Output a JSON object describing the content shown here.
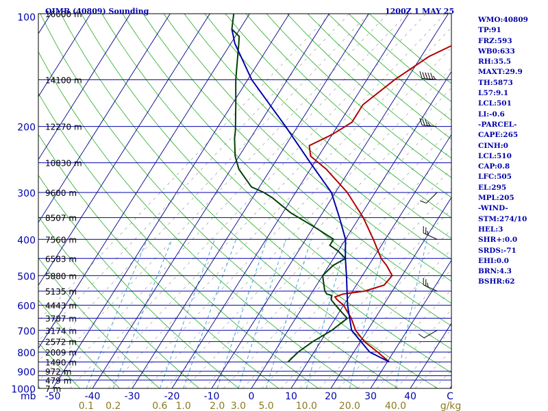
{
  "header": {
    "station": "OIMB (40809) Sounding",
    "time": "1200Z  1 MAY 25"
  },
  "indices": [
    "WMO:40809",
    "TP:91",
    "FRZ:593",
    "WB0:633",
    "RH:35.5",
    "MAXT:29.9",
    "TH:5873",
    "L57:9.1",
    "LCL:501",
    "LI:-0.6",
    "-PARCEL-",
    "CAPE:265",
    "CINH:0",
    "LCL:510",
    "CAP:0.8",
    "LFC:505",
    "EL:295",
    "MPL:205",
    "-WIND-",
    "STM:274/10",
    "HEL:3",
    "SHR+:0.0",
    "SRDS:-71",
    "EHI:0.0",
    "BRN:4.3",
    "BSHR:62"
  ],
  "chart_data": {
    "type": "line",
    "title": "OIMB (40809) Sounding",
    "subtitle": "1200Z  1 MAY 25",
    "pressure_axis": {
      "unit_label": "mb",
      "scale": "log",
      "range": [
        1000,
        100
      ],
      "ticks": [
        "100",
        "200",
        "300",
        "400",
        "500",
        "600",
        "700",
        "800",
        "900",
        "1000"
      ]
    },
    "temperature_axis": {
      "range": [
        -50,
        50
      ],
      "ticks": [
        "-50",
        "-40",
        "-30",
        "-20",
        "-10",
        "0",
        "10",
        "20",
        "30",
        "40",
        "C"
      ]
    },
    "mixing_ratio_axis": {
      "unit_label": "g/kg",
      "ticks": [
        "0.1",
        "0.2",
        "0.6",
        "1.0",
        "2.0",
        "3.0",
        "5.0",
        "10.0",
        "20.0",
        "40.0"
      ],
      "values": [
        0.1,
        0.2,
        0.6,
        1.0,
        2.0,
        3.0,
        5.0,
        10.0,
        20.0,
        40.0
      ]
    },
    "isobars_drawn": [
      100,
      150,
      200,
      250,
      300,
      350,
      400,
      450,
      500,
      550,
      600,
      650,
      700,
      750,
      800,
      850,
      900,
      925,
      950,
      1000
    ],
    "height_labels": [
      {
        "p": 100,
        "label": "16600 m"
      },
      {
        "p": 150,
        "label": "14100 m"
      },
      {
        "p": 200,
        "label": "12270 m"
      },
      {
        "p": 250,
        "label": "10830 m"
      },
      {
        "p": 300,
        "label": "9600 m"
      },
      {
        "p": 350,
        "label": "8507 m"
      },
      {
        "p": 400,
        "label": "7560 m"
      },
      {
        "p": 450,
        "label": "6583 m"
      },
      {
        "p": 500,
        "label": "5880 m"
      },
      {
        "p": 550,
        "label": "5135 m"
      },
      {
        "p": 600,
        "label": "4443 m"
      },
      {
        "p": 650,
        "label": "3787 m"
      },
      {
        "p": 700,
        "label": "3174 m"
      },
      {
        "p": 750,
        "label": "2572 m"
      },
      {
        "p": 800,
        "label": "2009 m"
      },
      {
        "p": 850,
        "label": "1490 m"
      },
      {
        "p": 900,
        "label": "972 m"
      },
      {
        "p": 950,
        "label": "479 m"
      },
      {
        "p": 1000,
        "label": "7 m"
      }
    ],
    "series": [
      {
        "color": "#b00000",
        "points": [
          [
            850,
            30.5
          ],
          [
            800,
            26
          ],
          [
            750,
            21
          ],
          [
            700,
            17
          ],
          [
            650,
            14
          ],
          [
            600,
            10
          ],
          [
            580,
            7.5
          ],
          [
            570,
            6.5
          ],
          [
            560,
            8
          ],
          [
            550,
            13
          ],
          [
            530,
            17
          ],
          [
            500,
            17.5
          ],
          [
            470,
            14.5
          ],
          [
            450,
            12
          ],
          [
            400,
            7
          ],
          [
            350,
            1
          ],
          [
            300,
            -7
          ],
          [
            260,
            -16
          ],
          [
            240,
            -22
          ],
          [
            225,
            -24
          ],
          [
            210,
            -20
          ],
          [
            195,
            -17
          ],
          [
            175,
            -17
          ],
          [
            150,
            -13
          ],
          [
            130,
            -8
          ],
          [
            110,
            2
          ],
          [
            100,
            7
          ]
        ]
      },
      {
        "color": "#004000",
        "points": [
          [
            850,
            5
          ],
          [
            800,
            6
          ],
          [
            750,
            8
          ],
          [
            700,
            11
          ],
          [
            650,
            13
          ],
          [
            620,
            10
          ],
          [
            600,
            8
          ],
          [
            580,
            6
          ],
          [
            565,
            5.5
          ],
          [
            560,
            4
          ],
          [
            550,
            3
          ],
          [
            500,
            0
          ],
          [
            470,
            1
          ],
          [
            450,
            3
          ],
          [
            430,
            0
          ],
          [
            415,
            -3
          ],
          [
            400,
            -3
          ],
          [
            370,
            -10
          ],
          [
            340,
            -18
          ],
          [
            310,
            -25
          ],
          [
            300,
            -28
          ],
          [
            290,
            -32
          ],
          [
            260,
            -38
          ],
          [
            240,
            -41
          ],
          [
            215,
            -44
          ],
          [
            205,
            -45
          ],
          [
            175,
            -49
          ],
          [
            150,
            -53
          ],
          [
            120,
            -58
          ],
          [
            115,
            -59
          ],
          [
            110,
            -62
          ],
          [
            100,
            -64
          ]
        ]
      },
      {
        "color": "#0000aa",
        "points": [
          [
            850,
            30.5
          ],
          [
            800,
            24
          ],
          [
            700,
            16
          ],
          [
            600,
            11
          ],
          [
            500,
            6
          ],
          [
            450,
            3
          ],
          [
            400,
            0
          ],
          [
            350,
            -5
          ],
          [
            300,
            -11
          ],
          [
            250,
            -21
          ],
          [
            200,
            -33
          ],
          [
            150,
            -49
          ],
          [
            120,
            -59
          ],
          [
            110,
            -62
          ]
        ]
      }
    ],
    "wind_barbs": [
      {
        "p": 150,
        "dir": 275,
        "speed": 95
      },
      {
        "p": 200,
        "dir": 275,
        "speed": 75
      },
      {
        "p": 300,
        "dir": 225,
        "speed": 10
      },
      {
        "p": 400,
        "dir": 295,
        "speed": 25
      },
      {
        "p": 550,
        "dir": 295,
        "speed": 25
      },
      {
        "p": 700,
        "dir": 240,
        "speed": 10
      }
    ]
  }
}
